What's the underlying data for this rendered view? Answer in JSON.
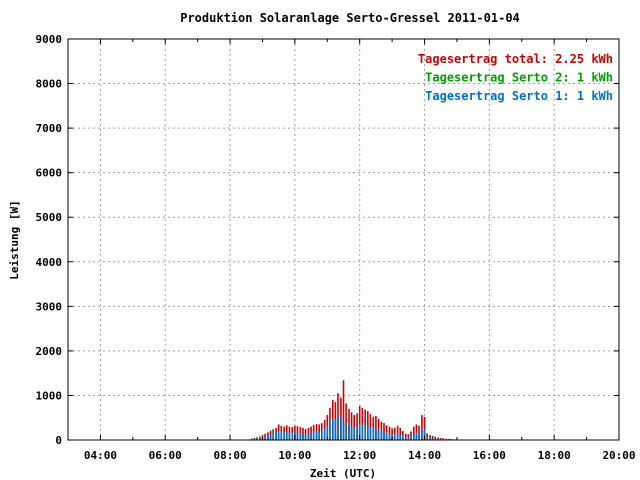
{
  "chart_data": {
    "type": "bar",
    "title": "Produktion Solaranlage Serto-Gressel 2011-01-04",
    "xlabel": "Zeit (UTC)",
    "ylabel": "Leistung [W]",
    "xlim": [
      3.0,
      20.0
    ],
    "ylim": [
      0,
      9000
    ],
    "x_ticks": [
      {
        "value": 4,
        "label": "04:00"
      },
      {
        "value": 6,
        "label": "06:00"
      },
      {
        "value": 8,
        "label": "08:00"
      },
      {
        "value": 10,
        "label": "10:00"
      },
      {
        "value": 12,
        "label": "12:00"
      },
      {
        "value": 14,
        "label": "14:00"
      },
      {
        "value": 16,
        "label": "16:00"
      },
      {
        "value": 18,
        "label": "18:00"
      },
      {
        "value": 20,
        "label": "20:00"
      }
    ],
    "y_ticks": [
      {
        "value": 0,
        "label": "0"
      },
      {
        "value": 1000,
        "label": "1000"
      },
      {
        "value": 2000,
        "label": "2000"
      },
      {
        "value": 3000,
        "label": "3000"
      },
      {
        "value": 4000,
        "label": "4000"
      },
      {
        "value": 5000,
        "label": "5000"
      },
      {
        "value": 6000,
        "label": "6000"
      },
      {
        "value": 7000,
        "label": "7000"
      },
      {
        "value": 8000,
        "label": "8000"
      },
      {
        "value": 9000,
        "label": "9000"
      }
    ],
    "grid": true,
    "legend_position": "top-right",
    "colors": {
      "total": "#cc0000",
      "serto2": "#00a000",
      "serto1": "#0070d0"
    },
    "legend": [
      {
        "key": "total",
        "label": "Tagesertrag total: 2.25 kWh"
      },
      {
        "key": "serto2",
        "label": "Tagesertrag Serto 2: 1 kWh"
      },
      {
        "key": "serto1",
        "label": "Tagesertrag Serto 1: 1 kWh"
      }
    ],
    "x": [
      8.67,
      8.75,
      8.83,
      8.92,
      9.0,
      9.08,
      9.17,
      9.25,
      9.33,
      9.42,
      9.5,
      9.58,
      9.67,
      9.75,
      9.83,
      9.92,
      10.0,
      10.08,
      10.17,
      10.25,
      10.33,
      10.42,
      10.5,
      10.58,
      10.67,
      10.75,
      10.83,
      10.92,
      11.0,
      11.08,
      11.17,
      11.25,
      11.33,
      11.42,
      11.5,
      11.58,
      11.67,
      11.75,
      11.83,
      11.92,
      12.0,
      12.08,
      12.17,
      12.25,
      12.33,
      12.42,
      12.5,
      12.58,
      12.67,
      12.75,
      12.83,
      12.92,
      13.0,
      13.08,
      13.17,
      13.25,
      13.33,
      13.42,
      13.5,
      13.58,
      13.67,
      13.75,
      13.83,
      13.92,
      14.0,
      14.08,
      14.17,
      14.25,
      14.33,
      14.42,
      14.5,
      14.58,
      14.67,
      14.75,
      14.83,
      14.92,
      15.0,
      15.08
    ],
    "series": [
      {
        "name": "Serto 1",
        "key": "serto1",
        "values": [
          20,
          30,
          40,
          55,
          70,
          90,
          110,
          140,
          160,
          180,
          200,
          190,
          170,
          180,
          170,
          160,
          180,
          170,
          160,
          150,
          140,
          150,
          170,
          190,
          200,
          190,
          210,
          260,
          330,
          420,
          480,
          460,
          560,
          500,
          400,
          380,
          350,
          300,
          280,
          300,
          370,
          340,
          330,
          320,
          290,
          260,
          270,
          240,
          200,
          180,
          160,
          140,
          120,
          130,
          150,
          120,
          100,
          70,
          60,
          90,
          140,
          170,
          150,
          260,
          240,
          70,
          50,
          40,
          30,
          25,
          20,
          18,
          15,
          12,
          10,
          8,
          5,
          3
        ]
      },
      {
        "name": "Serto 2",
        "key": "serto2",
        "values": [
          5,
          8,
          10,
          12,
          15,
          20,
          25,
          30,
          35,
          40,
          45,
          42,
          40,
          42,
          40,
          38,
          40,
          38,
          36,
          35,
          33,
          35,
          38,
          42,
          45,
          42,
          45,
          55,
          70,
          85,
          95,
          92,
          110,
          100,
          85,
          80,
          75,
          65,
          60,
          65,
          75,
          70,
          68,
          66,
          60,
          55,
          56,
          50,
          42,
          38,
          34,
          30,
          26,
          28,
          32,
          26,
          22,
          15,
          13,
          20,
          30,
          36,
          32,
          60,
          55,
          15,
          12,
          10,
          8,
          6,
          5,
          4,
          3,
          3,
          2,
          2,
          1,
          1
        ]
      },
      {
        "name": "total",
        "key": "total",
        "values": [
          30,
          45,
          60,
          80,
          110,
          140,
          170,
          210,
          240,
          270,
          350,
          320,
          300,
          330,
          300,
          290,
          320,
          310,
          290,
          270,
          250,
          270,
          300,
          340,
          360,
          350,
          380,
          450,
          560,
          720,
          900,
          850,
          1050,
          950,
          1340,
          820,
          700,
          620,
          560,
          600,
          760,
          720,
          680,
          650,
          580,
          520,
          540,
          480,
          410,
          380,
          330,
          300,
          260,
          280,
          320,
          270,
          200,
          140,
          130,
          190,
          300,
          350,
          320,
          560,
          520,
          150,
          110,
          90,
          70,
          55,
          45,
          40,
          30,
          25,
          20,
          15,
          10,
          5
        ]
      }
    ]
  }
}
